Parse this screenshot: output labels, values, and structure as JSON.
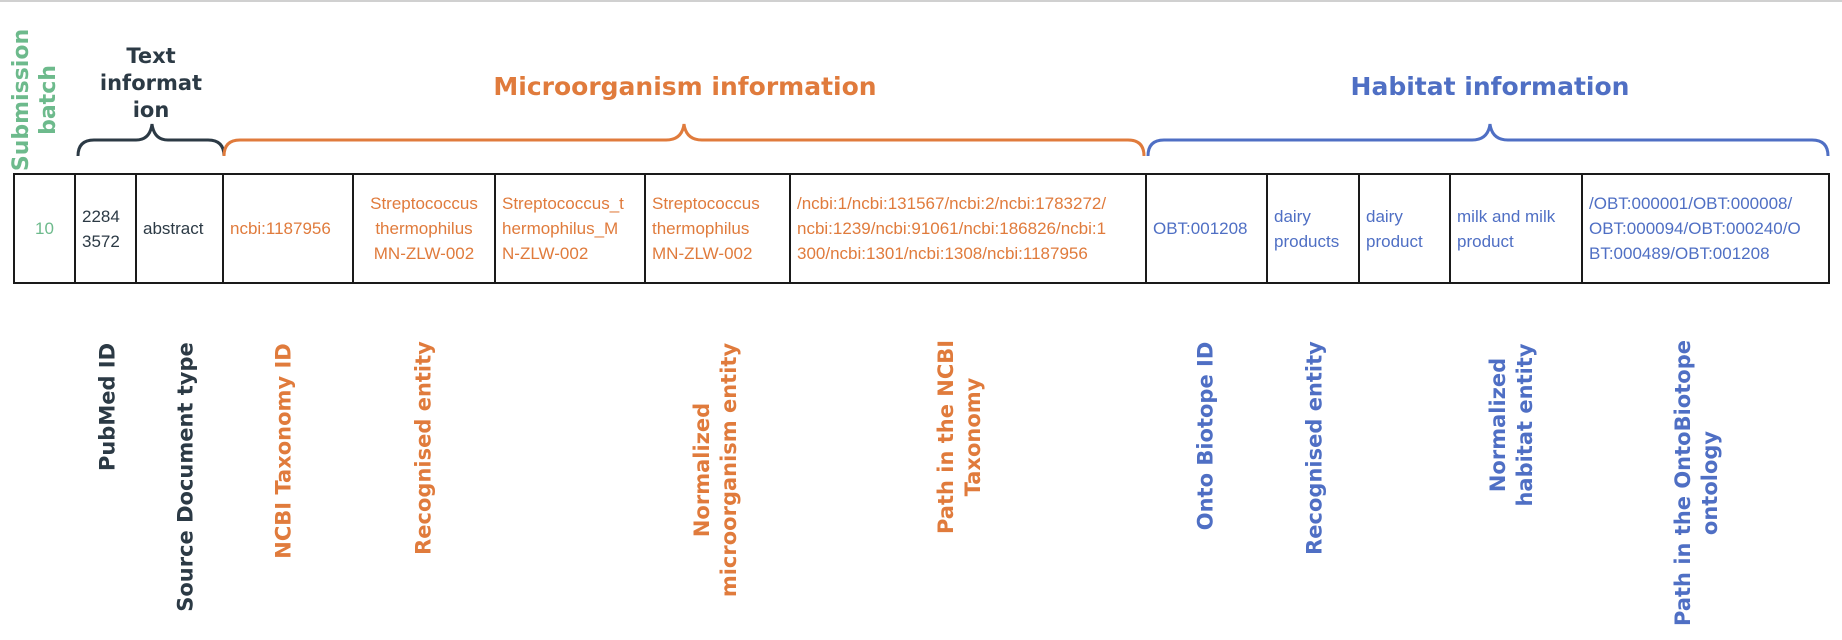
{
  "header": {
    "submission_batch": "Submission\nbatch",
    "text_information": "Text\ninformat\nion",
    "microorganism_information": "Microorganism information",
    "habitat_information": "Habitat information"
  },
  "row": {
    "batch": "10",
    "pubmed_id": "2284\n3572",
    "document_type": "abstract",
    "ncbi_taxonomy_id": "ncbi:1187956",
    "recognised_microorganism": "Streptococcus\nthermophilus\nMN-ZLW-002",
    "normalized_microorganism_identifier": "Streptococcus_t\nhermophilus_M\nN-ZLW-002",
    "normalized_microorganism": "Streptococcus\nthermophilus\nMN-ZLW-002",
    "ncbi_path": "/ncbi:1/ncbi:131567/ncbi:2/ncbi:1783272/\nncbi:1239/ncbi:91061/ncbi:186826/ncbi:1\n300/ncbi:1301/ncbi:1308/ncbi:1187956",
    "ontobiotope_id": "OBT:001208",
    "recognised_habitat": "dairy\nproducts",
    "habitat_lemma": "dairy\nproduct",
    "normalized_habitat": "milk and milk\nproduct",
    "ontobiotope_path": "/OBT:000001/OBT:000008/\nOBT:000094/OBT:000240/O\nBT:000489/OBT:001208"
  },
  "labels": {
    "pubmed_id": "PubMed ID",
    "source_document_type": "Source Document type",
    "ncbi_taxonomy_id": "NCBI Taxonomy ID",
    "recognised_entity_micro": "Recognised entity",
    "normalized_microorganism_entity": "Normalized\nmicroorganism entity",
    "path_ncbi_taxonomy": "Path in the NCBI\nTaxonomy",
    "onto_biotope_id": "Onto Biotope ID",
    "recognised_entity_habitat": "Recognised entity",
    "normalized_habitat_entity": "Normalized\nhabitat entity",
    "path_ontobiotope": "Path in the OntoBiotope\nontology"
  },
  "colors": {
    "green": "#6dba8c",
    "dark": "#2c3a45",
    "orange": "#e07b3c",
    "blue": "#4f6fc4"
  }
}
